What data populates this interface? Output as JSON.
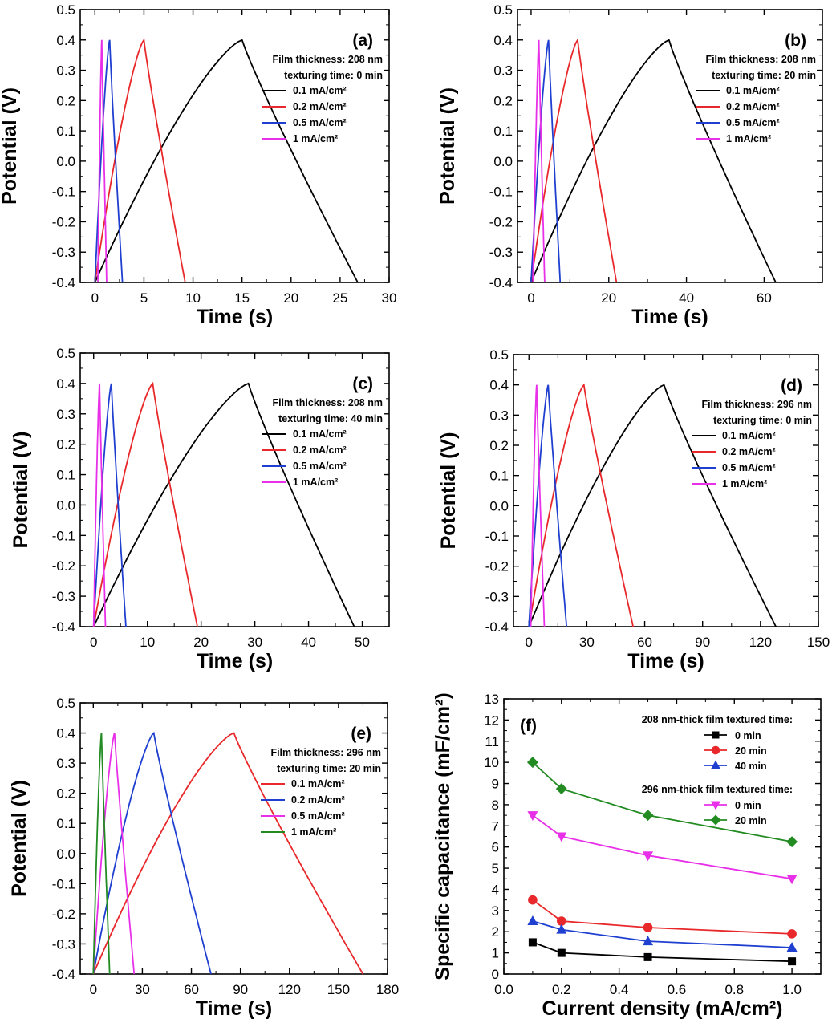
{
  "panels": [
    {
      "type": "line",
      "id": "a",
      "label": "(a)",
      "xlabel": "Time (s)",
      "ylabel": "Potential (V)",
      "xlim": [
        -1.5,
        30
      ],
      "ylim": [
        -0.4,
        0.5
      ],
      "xticks": [
        "0",
        "5",
        "10",
        "15",
        "20",
        "25",
        "30"
      ],
      "yticks": [
        "-0.4",
        "-0.3",
        "-0.2",
        "-0.1",
        "0.0",
        "0.1",
        "0.2",
        "0.3",
        "0.4",
        "0.5"
      ],
      "info": [
        "Film thickness: 208 nm",
        "texturing time: 0 min"
      ],
      "series": [
        {
          "name": "0.1 mA/cm²",
          "color": "#000000",
          "start": 0,
          "peak": 15,
          "end": 26.8
        },
        {
          "name": "0.2 mA/cm²",
          "color": "#e8282a",
          "start": 0,
          "peak": 5,
          "end": 9.2
        },
        {
          "name": "0.5 mA/cm²",
          "color": "#1f3fd0",
          "start": 0,
          "peak": 1.5,
          "end": 2.8
        },
        {
          "name": "1 mA/cm²",
          "color": "#e830e8",
          "start": 0.3,
          "peak": 0.7,
          "end": 1.2
        }
      ]
    },
    {
      "type": "line",
      "id": "b",
      "label": "(b)",
      "xlabel": "Time (s)",
      "ylabel": "Potential (V)",
      "xlim": [
        -3.5,
        75
      ],
      "ylim": [
        -0.4,
        0.5
      ],
      "xticks": [
        "0",
        "20",
        "40",
        "60"
      ],
      "yticks": [
        "-0.4",
        "-0.3",
        "-0.2",
        "-0.1",
        "0.0",
        "0.1",
        "0.2",
        "0.3",
        "0.4",
        "0.5"
      ],
      "info": [
        "Film thickness: 208 nm",
        "texturing time: 20 min"
      ],
      "series": [
        {
          "name": "0.1 mA/cm²",
          "color": "#000000",
          "start": 0,
          "peak": 35.5,
          "end": 63
        },
        {
          "name": "0.2 mA/cm²",
          "color": "#e8282a",
          "start": 0,
          "peak": 12,
          "end": 22
        },
        {
          "name": "0.5 mA/cm²",
          "color": "#1f3fd0",
          "start": 0,
          "peak": 4.5,
          "end": 7.5
        },
        {
          "name": "1 mA/cm²",
          "color": "#e830e8",
          "start": 0.5,
          "peak": 2,
          "end": 3.5
        }
      ]
    },
    {
      "type": "line",
      "id": "c",
      "label": "(c)",
      "xlabel": "Time (s)",
      "ylabel": "Potential (V)",
      "xlim": [
        -2.5,
        55
      ],
      "ylim": [
        -0.4,
        0.5
      ],
      "xticks": [
        "0",
        "10",
        "20",
        "30",
        "40",
        "50"
      ],
      "yticks": [
        "-0.4",
        "-0.3",
        "-0.2",
        "-0.1",
        "0.0",
        "0.1",
        "0.2",
        "0.3",
        "0.4",
        "0.5"
      ],
      "info": [
        "Film thickness: 208 nm",
        "texturing time: 40 min"
      ],
      "series": [
        {
          "name": "0.1 mA/cm²",
          "color": "#000000",
          "start": 0,
          "peak": 28.8,
          "end": 48.5
        },
        {
          "name": "0.2 mA/cm²",
          "color": "#e8282a",
          "start": 0,
          "peak": 11,
          "end": 19.3
        },
        {
          "name": "0.5 mA/cm²",
          "color": "#1f3fd0",
          "start": 0,
          "peak": 3.3,
          "end": 6
        },
        {
          "name": "1 mA/cm²",
          "color": "#e830e8",
          "start": 0,
          "peak": 1.1,
          "end": 2.2
        }
      ]
    },
    {
      "type": "line",
      "id": "d",
      "label": "(d)",
      "xlabel": "Time (s)",
      "ylabel": "Potential (V)",
      "xlim": [
        -8,
        150
      ],
      "ylim": [
        -0.4,
        0.5
      ],
      "xticks": [
        "0",
        "30",
        "60",
        "90",
        "120",
        "150"
      ],
      "yticks": [
        "-0.4",
        "-0.3",
        "-0.2",
        "-0.1",
        "0.0",
        "0.1",
        "0.2",
        "0.3",
        "0.4",
        "0.5"
      ],
      "info": [
        "Film thickness: 296 nm",
        "texturing time: 0 min"
      ],
      "series": [
        {
          "name": "0.1 mA/cm²",
          "color": "#000000",
          "start": 0,
          "peak": 70,
          "end": 128
        },
        {
          "name": "0.2 mA/cm²",
          "color": "#e8282a",
          "start": 0,
          "peak": 28.5,
          "end": 54
        },
        {
          "name": "0.5 mA/cm²",
          "color": "#1f3fd0",
          "start": 0,
          "peak": 10,
          "end": 19.5
        },
        {
          "name": "1 mA/cm²",
          "color": "#e830e8",
          "start": 1,
          "peak": 4,
          "end": 8
        }
      ]
    },
    {
      "type": "line",
      "id": "e",
      "label": "(e)",
      "xlabel": "Time (s)",
      "ylabel": "Potential (V)",
      "xlim": [
        -8,
        180
      ],
      "ylim": [
        -0.4,
        0.5
      ],
      "xticks": [
        "0",
        "30",
        "60",
        "90",
        "120",
        "150",
        "180"
      ],
      "yticks": [
        "-0.4",
        "-0.3",
        "-0.2",
        "-0.1",
        "0.0",
        "0.1",
        "0.2",
        "0.3",
        "0.4",
        "0.5"
      ],
      "info": [
        "Film thickness: 296 nm",
        "texturing time: 20 min"
      ],
      "series": [
        {
          "name": "0.1 mA/cm²",
          "color": "#e8282a",
          "start": 0,
          "peak": 86,
          "end": 165
        },
        {
          "name": "0.2 mA/cm²",
          "color": "#1f3fd0",
          "start": 0,
          "peak": 37,
          "end": 72
        },
        {
          "name": "0.5 mA/cm²",
          "color": "#e830e8",
          "start": 0,
          "peak": 13,
          "end": 25
        },
        {
          "name": "1 mA/cm²",
          "color": "#228b22",
          "start": 0,
          "peak": 5,
          "end": 10
        }
      ]
    }
  ],
  "chart_data": {
    "type": "line",
    "id": "f",
    "label": "(f)",
    "xlabel": "Current density (mA/cm²)",
    "ylabel": "Specific capacitance (mF/cm²)",
    "xlim": [
      0,
      1.1
    ],
    "ylim": [
      0,
      13
    ],
    "xticks": [
      "0.0",
      "0.2",
      "0.4",
      "0.6",
      "0.8",
      "1.0"
    ],
    "yticks": [
      "0",
      "1",
      "2",
      "3",
      "4",
      "5",
      "6",
      "7",
      "8",
      "9",
      "10",
      "11",
      "12",
      "13"
    ],
    "x": [
      0.1,
      0.2,
      0.5,
      1.0
    ],
    "legend_groups": [
      {
        "title": "208 nm-thick film textured time:",
        "series": [
          0,
          1,
          2
        ]
      },
      {
        "title": "296 nm-thick film textured time:",
        "series": [
          3,
          4
        ]
      }
    ],
    "series": [
      {
        "name": "0 min",
        "color": "#000000",
        "marker": "square",
        "values": [
          1.5,
          1.0,
          0.8,
          0.6
        ]
      },
      {
        "name": "20 min",
        "color": "#e8282a",
        "marker": "circle",
        "values": [
          3.5,
          2.5,
          2.2,
          1.9
        ]
      },
      {
        "name": "40 min",
        "color": "#1f3fd0",
        "marker": "triangle-up",
        "values": [
          2.5,
          2.1,
          1.55,
          1.25
        ]
      },
      {
        "name": "0 min",
        "color": "#e830e8",
        "marker": "triangle-down",
        "values": [
          7.5,
          6.5,
          5.6,
          4.5
        ]
      },
      {
        "name": "20 min",
        "color": "#228b22",
        "marker": "diamond",
        "values": [
          10.0,
          8.75,
          7.5,
          6.25
        ]
      }
    ]
  }
}
